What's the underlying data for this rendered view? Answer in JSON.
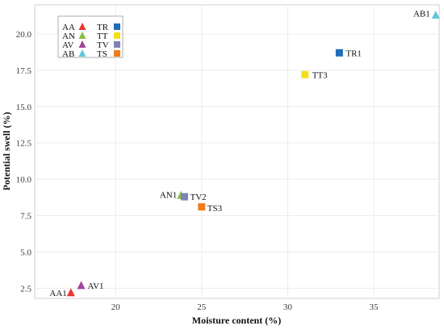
{
  "chart_data": {
    "type": "scatter",
    "xlabel": "Moisture content (%)",
    "ylabel": "Potential swell (%)",
    "xlim": [
      15.3,
      38.8
    ],
    "ylim": [
      1.8,
      22.0
    ],
    "x_ticks": [
      20,
      25,
      30,
      35
    ],
    "y_ticks": [
      2.5,
      5.0,
      7.5,
      10.0,
      12.5,
      15.0,
      17.5,
      20.0
    ],
    "grid": true,
    "legend_position": "top-left",
    "legend": [
      {
        "name": "AA",
        "marker": "triangle",
        "color": "#e8362e"
      },
      {
        "name": "AN",
        "marker": "triangle",
        "color": "#86c042"
      },
      {
        "name": "AV",
        "marker": "triangle",
        "color": "#a4449a"
      },
      {
        "name": "AB",
        "marker": "triangle",
        "color": "#63c7d9"
      },
      {
        "name": "TR",
        "marker": "square",
        "color": "#1f6cb8"
      },
      {
        "name": "TT",
        "marker": "square",
        "color": "#f2e01e"
      },
      {
        "name": "TV",
        "marker": "square",
        "color": "#7e82b8"
      },
      {
        "name": "TS",
        "marker": "square",
        "color": "#f07d1c"
      }
    ],
    "points": [
      {
        "label": "AA1",
        "group": "AA",
        "x": 17.4,
        "y": 2.2
      },
      {
        "label": "AV1",
        "group": "AV",
        "x": 18.0,
        "y": 2.7
      },
      {
        "label": "AN1",
        "group": "AN",
        "x": 23.8,
        "y": 8.9
      },
      {
        "label": "TV2",
        "group": "TV",
        "x": 24.0,
        "y": 8.8
      },
      {
        "label": "TS3",
        "group": "TS",
        "x": 25.0,
        "y": 8.1
      },
      {
        "label": "TT3",
        "group": "TT",
        "x": 31.0,
        "y": 17.2
      },
      {
        "label": "TR1",
        "group": "TR",
        "x": 33.0,
        "y": 18.7
      },
      {
        "label": "AB1",
        "group": "AB",
        "x": 38.6,
        "y": 21.3
      }
    ]
  }
}
